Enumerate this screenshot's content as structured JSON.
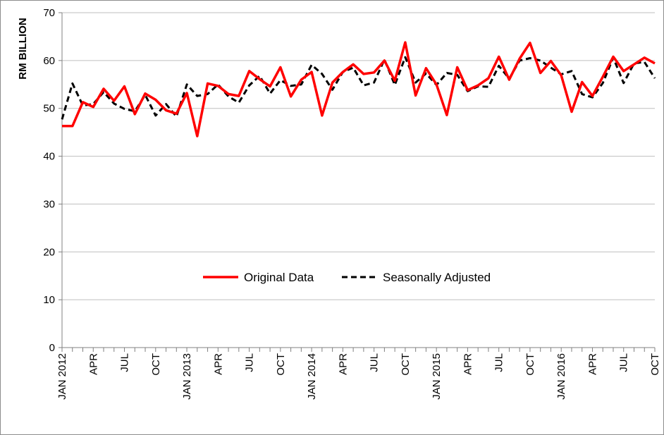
{
  "chart_data": {
    "type": "line",
    "title": "",
    "xlabel": "",
    "ylabel": "RM BILLION",
    "ylim": [
      0,
      70
    ],
    "yticks": [
      0,
      10,
      20,
      30,
      40,
      50,
      60,
      70
    ],
    "grid": true,
    "legend_position": "center",
    "x": [
      "Jan 2012",
      "Feb 2012",
      "Mar 2012",
      "Apr 2012",
      "May 2012",
      "Jun 2012",
      "Jul 2012",
      "Aug 2012",
      "Sep 2012",
      "Oct 2012",
      "Nov 2012",
      "Dec 2012",
      "Jan 2013",
      "Feb 2013",
      "Mar 2013",
      "Apr 2013",
      "May 2013",
      "Jun 2013",
      "Jul 2013",
      "Aug 2013",
      "Sep 2013",
      "Oct 2013",
      "Nov 2013",
      "Dec 2013",
      "Jan 2014",
      "Feb 2014",
      "Mar 2014",
      "Apr 2014",
      "May 2014",
      "Jun 2014",
      "Jul 2014",
      "Aug 2014",
      "Sep 2014",
      "Oct 2014",
      "Nov 2014",
      "Dec 2014",
      "Jan 2015",
      "Feb 2015",
      "Mar 2015",
      "Apr 2015",
      "May 2015",
      "Jun 2015",
      "Jul 2015",
      "Aug 2015",
      "Sep 2015",
      "Oct 2015",
      "Nov 2015",
      "Dec 2015",
      "Jan 2016",
      "Feb 2016",
      "Mar 2016",
      "Apr 2016",
      "May 2016",
      "Jun 2016",
      "Jul 2016",
      "Aug 2016",
      "Sep 2016",
      "Oct 2016"
    ],
    "x_tick_labels": [
      {
        "index": 0,
        "label": "JAN 2012"
      },
      {
        "index": 3,
        "label": "APR"
      },
      {
        "index": 6,
        "label": "JUL"
      },
      {
        "index": 9,
        "label": "OCT"
      },
      {
        "index": 12,
        "label": "JAN 2013"
      },
      {
        "index": 15,
        "label": "APR"
      },
      {
        "index": 18,
        "label": "JUL"
      },
      {
        "index": 21,
        "label": "OCT"
      },
      {
        "index": 24,
        "label": "JAN 2014"
      },
      {
        "index": 27,
        "label": "APR"
      },
      {
        "index": 30,
        "label": "JUL"
      },
      {
        "index": 33,
        "label": "OCT"
      },
      {
        "index": 36,
        "label": "JAN 2015"
      },
      {
        "index": 39,
        "label": "APR"
      },
      {
        "index": 42,
        "label": "JUL"
      },
      {
        "index": 45,
        "label": "OCT"
      },
      {
        "index": 48,
        "label": "JAN 2016"
      },
      {
        "index": 51,
        "label": "APR"
      },
      {
        "index": 54,
        "label": "JUL"
      },
      {
        "index": 57,
        "label": "OCT"
      }
    ],
    "series": [
      {
        "name": "Original Data",
        "color": "#ff0000",
        "style": "solid",
        "values": [
          46.3,
          46.3,
          51.3,
          50.3,
          54.1,
          51.6,
          54.6,
          48.8,
          53.1,
          51.8,
          49.6,
          48.9,
          53.2,
          44.2,
          55.2,
          54.7,
          53.0,
          52.6,
          57.8,
          56.1,
          54.6,
          58.6,
          52.5,
          56.0,
          57.6,
          48.5,
          55.4,
          57.6,
          59.2,
          57.2,
          57.5,
          60.0,
          55.8,
          63.8,
          52.7,
          58.4,
          55.0,
          48.6,
          58.6,
          53.8,
          54.8,
          56.3,
          60.8,
          56.0,
          60.4,
          63.7,
          57.4,
          59.9,
          56.9,
          49.3,
          55.5,
          52.6,
          56.6,
          60.8,
          57.8,
          59.2,
          60.6,
          59.4
        ]
      },
      {
        "name": "Seasonally Adjusted",
        "color": "#000000",
        "style": "dashed",
        "values": [
          47.7,
          55.2,
          50.6,
          50.9,
          53.4,
          51.0,
          49.9,
          49.4,
          52.8,
          48.5,
          50.9,
          48.3,
          55.0,
          52.6,
          53.0,
          55.0,
          52.5,
          51.2,
          54.8,
          56.8,
          53.1,
          55.9,
          54.7,
          55.0,
          59.1,
          57.2,
          53.9,
          57.6,
          58.5,
          54.8,
          55.4,
          60.2,
          54.9,
          60.7,
          55.4,
          57.3,
          54.9,
          57.4,
          57.0,
          53.6,
          54.6,
          54.5,
          58.9,
          56.2,
          60.0,
          60.5,
          60.0,
          58.5,
          57.1,
          57.8,
          53.0,
          52.3,
          55.3,
          60.6,
          55.3,
          59.4,
          59.7,
          56.3
        ]
      }
    ]
  }
}
